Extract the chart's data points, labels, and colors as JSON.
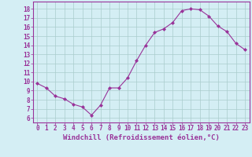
{
  "x": [
    0,
    1,
    2,
    3,
    4,
    5,
    6,
    7,
    8,
    9,
    10,
    11,
    12,
    13,
    14,
    15,
    16,
    17,
    18,
    19,
    20,
    21,
    22,
    23
  ],
  "y": [
    9.8,
    9.3,
    8.4,
    8.1,
    7.5,
    7.2,
    6.3,
    7.4,
    9.3,
    9.3,
    10.4,
    12.3,
    14.0,
    15.4,
    15.8,
    16.5,
    17.8,
    18.0,
    17.9,
    17.2,
    16.1,
    15.5,
    14.2,
    13.5
  ],
  "line_color": "#993399",
  "marker": "D",
  "marker_size": 2.0,
  "xlabel": "Windchill (Refroidissement éolien,°C)",
  "ylabel_ticks": [
    6,
    7,
    8,
    9,
    10,
    11,
    12,
    13,
    14,
    15,
    16,
    17,
    18
  ],
  "ylim": [
    5.5,
    18.8
  ],
  "xlim": [
    -0.5,
    23.5
  ],
  "bg_color": "#d4eef4",
  "grid_color": "#aacccc",
  "tick_color": "#993399",
  "label_color": "#993399",
  "tick_fontsize": 5.5,
  "xlabel_fontsize": 6.5,
  "linewidth": 0.8
}
